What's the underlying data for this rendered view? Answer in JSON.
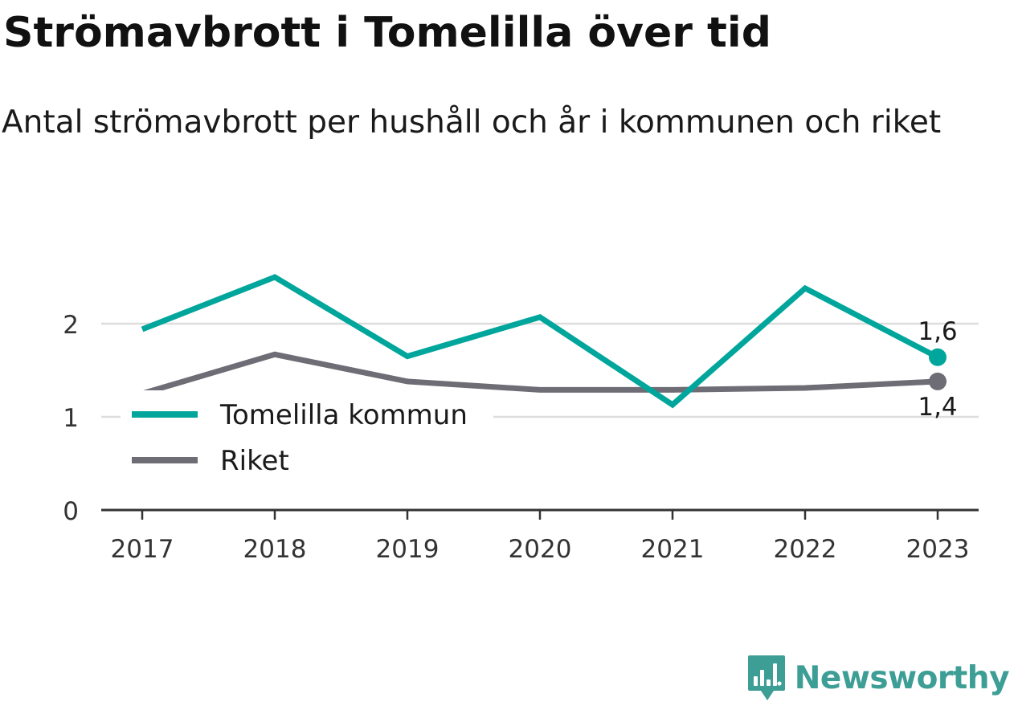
{
  "title": "Strömavbrott i Tomelilla över tid",
  "subtitle": "Antal strömavbrott per hushåll och år i kommunen och riket",
  "brand": {
    "name": "Newsworthy",
    "color": "#3d9e96",
    "icon": "bar-chart-speech-bubble-icon"
  },
  "chart_data": {
    "type": "line",
    "x": [
      "2017",
      "2018",
      "2019",
      "2020",
      "2021",
      "2022",
      "2023"
    ],
    "ylim": [
      0,
      2.6
    ],
    "yticks": [
      0,
      1,
      2
    ],
    "grid": true,
    "legend_position": "left-center",
    "series": [
      {
        "name": "Tomelilla kommun",
        "color": "#00a69c",
        "values": [
          1.94,
          2.5,
          1.65,
          2.07,
          1.13,
          2.38,
          1.64
        ],
        "end_label": "1,6"
      },
      {
        "name": "Riket",
        "color": "#6e6d75",
        "values": [
          1.25,
          1.67,
          1.38,
          1.29,
          1.29,
          1.31,
          1.38
        ],
        "end_label": "1,4"
      }
    ]
  }
}
